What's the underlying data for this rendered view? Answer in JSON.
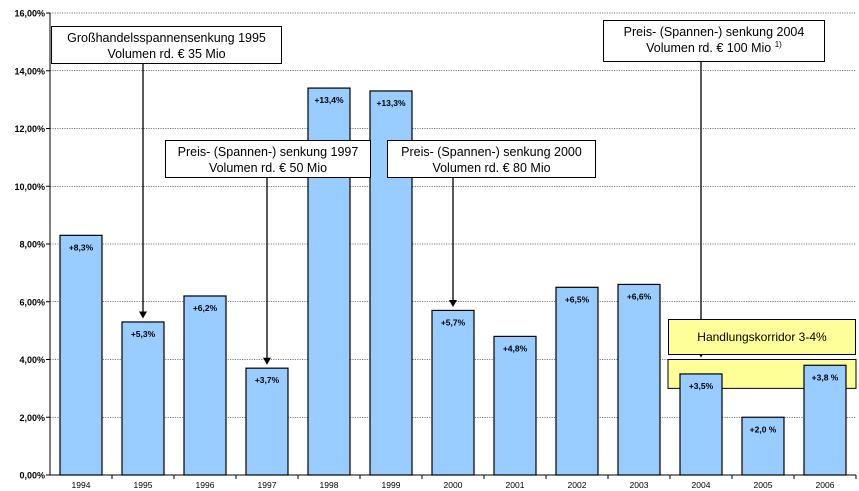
{
  "chart_data": {
    "type": "bar",
    "categories": [
      "1994",
      "1995",
      "1996",
      "1997",
      "1998",
      "1999",
      "2000",
      "2001",
      "2002",
      "2003",
      "2004",
      "2005",
      "2006"
    ],
    "values": [
      8.3,
      5.3,
      6.2,
      3.7,
      13.4,
      13.3,
      5.7,
      4.8,
      6.5,
      6.6,
      3.5,
      2.0,
      3.8
    ],
    "data_labels": [
      "+8,3%",
      "+5,3%",
      "+6,2%",
      "+3,7%",
      "+13,4%",
      "+13,3%",
      "+5,7%",
      "+4,8%",
      "+6,5%",
      "+6,6%",
      "+3,5%",
      "+2,0 %",
      "+3,8 %"
    ],
    "y_ticks": [
      0,
      2,
      4,
      6,
      8,
      10,
      12,
      14,
      16
    ],
    "y_tick_labels": [
      "0,00%",
      "2,00%",
      "4,00%",
      "6,00%",
      "8,00%",
      "10,00%",
      "12,00%",
      "14,00%",
      "16,00%"
    ],
    "ylim": [
      0,
      16
    ],
    "grid": true,
    "bar_color": "#99ccff",
    "title": "",
    "xlabel": "",
    "ylabel": ""
  },
  "corridor": {
    "label": "Handlungskorridor 3-4%",
    "range": [
      3,
      4
    ],
    "start_category": "2004",
    "fill_color": "#ffff99"
  },
  "annotations": [
    {
      "line1": "Großhandelsspannensenkung 1995",
      "line2": "Volumen rd. € 35 Mio",
      "note": "",
      "target": "1995"
    },
    {
      "line1": "Preis- (Spannen-) senkung 1997",
      "line2": "Volumen rd. € 50 Mio",
      "note": "",
      "target": "1997"
    },
    {
      "line1": "Preis- (Spannen-) senkung 2000",
      "line2": "Volumen rd. € 80 Mio",
      "note": "",
      "target": "2000"
    },
    {
      "line1": "Preis- (Spannen-) senkung 2004",
      "line2": "Volumen rd. € 100 Mio",
      "note": "1)",
      "target": "2004"
    }
  ]
}
